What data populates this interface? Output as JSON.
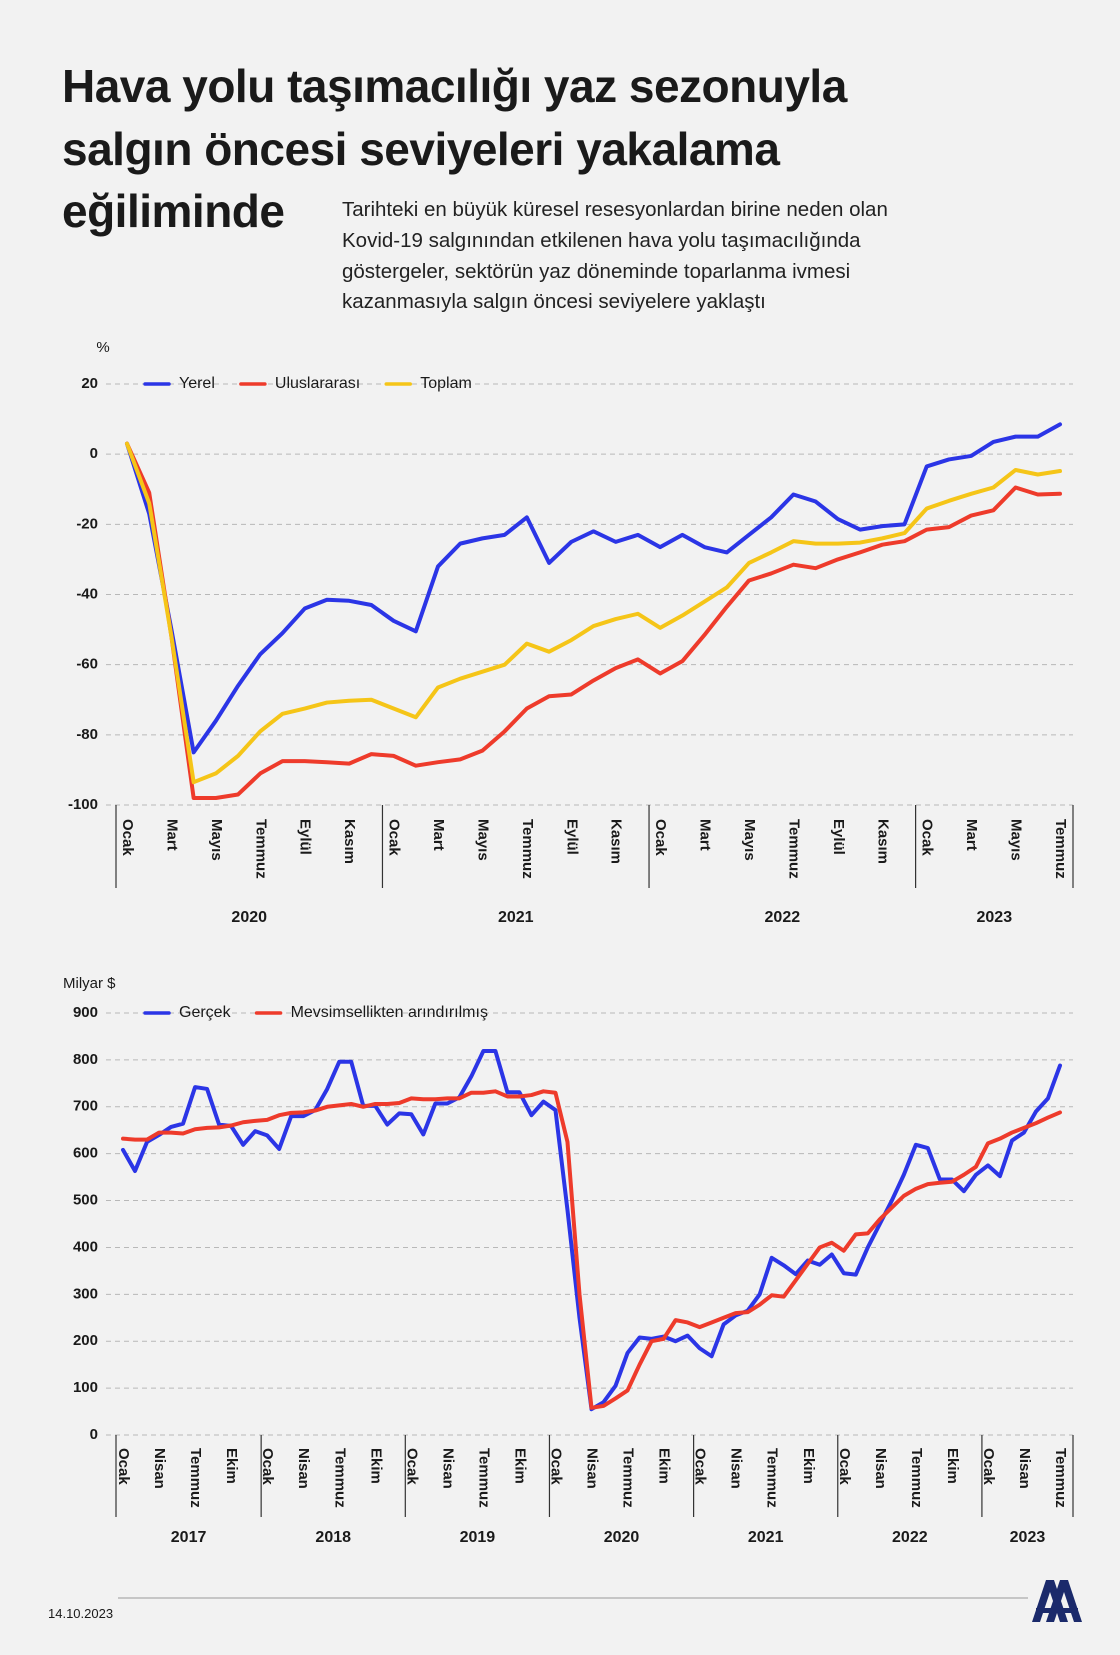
{
  "title_lines": [
    "Hava yolu taşımacılığı yaz sezonuyla",
    "salgın öncesi seviyeleri yakalama",
    "eğiliminde"
  ],
  "subtitle_lines": [
    "Tarihteki en büyük küresel resesyonlardan birine neden olan",
    "Kovid-19 salgınından etkilenen hava yolu taşımacılığında",
    "göstergeler, sektörün yaz döneminde toparlanma ivmesi",
    "kazanmasıyla salgın öncesi seviyelere yaklaştı"
  ],
  "date": "14.10.2023",
  "chart_data": [
    {
      "type": "line",
      "y_label": "%",
      "legend": "upper left",
      "grid": true,
      "categories": [
        "Ocak",
        null,
        "Mart",
        null,
        "Mayıs",
        null,
        "Temmuz",
        null,
        "Eylül",
        null,
        "Kasım",
        null,
        "Ocak",
        null,
        "Mart",
        null,
        "Mayıs",
        null,
        "Temmuz",
        null,
        "Eylül",
        null,
        "Kasım",
        null,
        "Ocak",
        null,
        "Mart",
        null,
        "Mayıs",
        null,
        "Temmuz",
        null,
        "Eylül",
        null,
        "Kasım",
        null,
        "Ocak",
        null,
        "Mart",
        null,
        "Mayıs",
        null,
        "Temmuz"
      ],
      "years": [
        "2020",
        "2021",
        "2022",
        "2023"
      ],
      "ylim": [
        -100,
        20
      ],
      "yticks": [
        -100,
        -80,
        -60,
        -40,
        -20,
        0,
        20
      ],
      "series": [
        {
          "name": "Yerel",
          "color": "#2b35e6",
          "values": [
            3,
            -17,
            -50,
            -85,
            -76,
            -66,
            -57,
            -51,
            -44,
            -41.5,
            -41.8,
            -43,
            -47.5,
            -50.5,
            -32,
            -25.5,
            -24,
            -23,
            -18,
            -31,
            -25,
            -22,
            -25,
            -23,
            -26.5,
            -23,
            -26.5,
            -28,
            -23,
            -18,
            -11.5,
            -13.5,
            -18.5,
            -21.5,
            -20.5,
            -20,
            -3.5,
            -1.5,
            -0.5,
            3.5,
            5,
            5,
            8.5
          ]
        },
        {
          "name": "Uluslararası",
          "color": "#ee3b2b",
          "values": [
            3,
            -11,
            -52,
            -98,
            -98,
            -97,
            -91,
            -87.5,
            -87.5,
            -87.8,
            -88.2,
            -85.5,
            -86,
            -88.8,
            -87.8,
            -87,
            -84.5,
            -79,
            -72.5,
            -69,
            -68.5,
            -64.5,
            -61,
            -58.5,
            -62.5,
            -59,
            -51.5,
            -43.5,
            -36,
            -34,
            -31.5,
            -32.5,
            -30,
            -28,
            -25.8,
            -24.8,
            -21.5,
            -20.8,
            -17.5,
            -16,
            -9.5,
            -11.5,
            -11.3
          ]
        },
        {
          "name": "Toplam",
          "color": "#f5c518",
          "values": [
            3,
            -14,
            -52,
            -93.5,
            -91,
            -86,
            -79,
            -74,
            -72.5,
            -70.8,
            -70.3,
            -70,
            -72.5,
            -75,
            -66.5,
            -64,
            -62,
            -60,
            -54,
            -56.3,
            -53,
            -49,
            -47,
            -45.5,
            -49.5,
            -46,
            -42,
            -38,
            -31,
            -28,
            -24.8,
            -25.5,
            -25.5,
            -25.2,
            -24,
            -22.5,
            -15.5,
            -13.3,
            -11.3,
            -9.5,
            -4.5,
            -5.8,
            -4.8
          ]
        }
      ]
    },
    {
      "type": "line",
      "y_label": "Milyar $",
      "legend": "upper left",
      "grid": true,
      "categories": [
        "Ocak",
        null,
        null,
        "Nisan",
        null,
        null,
        "Temmuz",
        null,
        null,
        "Ekim",
        null,
        null,
        "Ocak",
        null,
        null,
        "Nisan",
        null,
        null,
        "Temmuz",
        null,
        null,
        "Ekim",
        null,
        null,
        "Ocak",
        null,
        null,
        "Nisan",
        null,
        null,
        "Temmuz",
        null,
        null,
        "Ekim",
        null,
        null,
        "Ocak",
        null,
        null,
        "Nisan",
        null,
        null,
        "Temmuz",
        null,
        null,
        "Ekim",
        null,
        null,
        "Ocak",
        null,
        null,
        "Nisan",
        null,
        null,
        "Temmuz",
        null,
        null,
        "Ekim",
        null,
        null,
        "Ocak",
        null,
        null,
        "Nisan",
        null,
        null,
        "Temmuz",
        null,
        null,
        "Ekim",
        null,
        null,
        "Ocak",
        null,
        null,
        "Nisan",
        null,
        null,
        "Temmuz"
      ],
      "years": [
        "2017",
        "2018",
        "2019",
        "2020",
        "2021",
        "2022",
        "2023"
      ],
      "ylim": [
        0,
        900
      ],
      "yticks": [
        0,
        100,
        200,
        300,
        400,
        500,
        600,
        700,
        800,
        900
      ],
      "series": [
        {
          "name": "Gerçek",
          "color": "#2b35e6",
          "values": [
            608,
            563,
            625,
            640,
            657,
            664,
            742,
            738,
            662,
            659,
            619,
            648,
            639,
            610,
            680,
            680,
            693,
            738,
            796,
            796,
            702,
            702,
            662,
            686,
            684,
            641,
            707,
            707,
            720,
            765,
            819,
            819,
            731,
            731,
            682,
            711,
            693,
            480,
            250,
            55,
            70,
            105,
            175,
            208,
            205,
            210,
            200,
            212,
            185,
            168,
            236,
            255,
            265,
            300,
            378,
            362,
            343,
            372,
            363,
            385,
            345,
            342,
            400,
            450,
            500,
            555,
            619,
            612,
            545,
            545,
            520,
            555,
            575,
            552,
            628,
            645,
            690,
            718,
            788
          ]
        },
        {
          "name": "Mevsimsellikten arındırılmış",
          "color": "#ee3b2b",
          "values": [
            632,
            630,
            630,
            645,
            645,
            643,
            652,
            655,
            656,
            660,
            667,
            670,
            672,
            682,
            687,
            688,
            692,
            700,
            703,
            706,
            700,
            706,
            706,
            708,
            718,
            716,
            716,
            718,
            718,
            730,
            730,
            733,
            722,
            722,
            725,
            733,
            730,
            625,
            300,
            58,
            62,
            78,
            95,
            150,
            200,
            205,
            245,
            240,
            230,
            240,
            250,
            260,
            262,
            278,
            298,
            295,
            330,
            365,
            400,
            410,
            393,
            428,
            430,
            460,
            485,
            510,
            525,
            535,
            538,
            540,
            555,
            572,
            622,
            632,
            645,
            655,
            665,
            677,
            688
          ]
        }
      ]
    }
  ]
}
